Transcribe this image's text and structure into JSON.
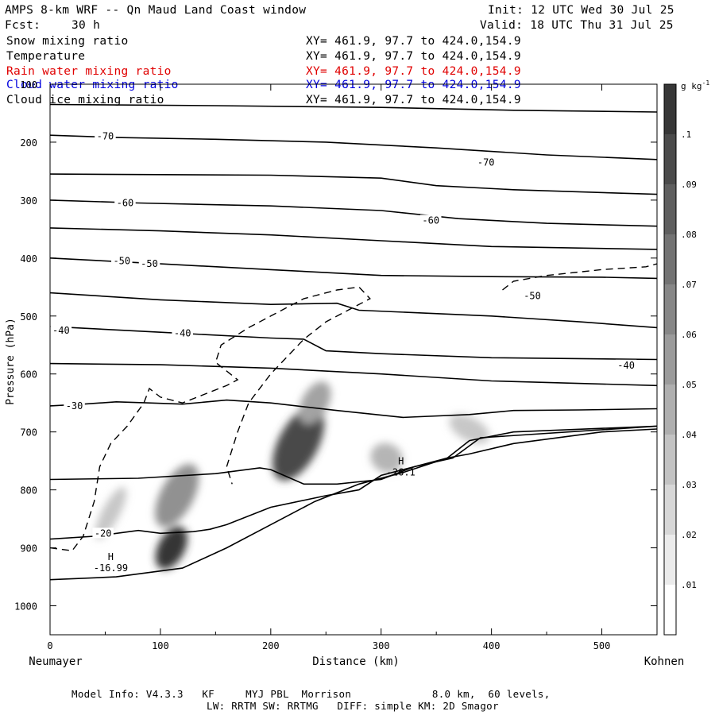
{
  "header": {
    "title": "AMPS 8-km WRF -- Qn Maud Land Coast window",
    "init": "Init: 12 UTC Wed 30 Jul 25",
    "fcst_label": "Fcst:",
    "fcst_value": "30 h",
    "valid": "Valid: 18 UTC Thu 31 Jul 25"
  },
  "fields": [
    {
      "name": "Snow mixing ratio",
      "xy": "XY= 461.9, 97.7 to 424.0,154.9",
      "color": "#000000"
    },
    {
      "name": "Temperature",
      "xy": "XY= 461.9, 97.7 to 424.0,154.9",
      "color": "#000000"
    },
    {
      "name": "Rain water mixing ratio",
      "xy": "XY= 461.9, 97.7 to 424.0,154.9",
      "color": "#e00000"
    },
    {
      "name": "Cloud water mixing ratio",
      "xy": "XY= 461.9, 97.7 to 424.0,154.9",
      "color": "#0000dd"
    },
    {
      "name": "Cloud ice mixing ratio",
      "xy": "XY= 461.9, 97.7 to 424.0,154.9",
      "color": "#000000"
    }
  ],
  "footer": {
    "line1": "Model Info: V4.3.3   KF     MYJ PBL  Morrison             8.0 km,  60 levels,",
    "line2": "LW: RRTM SW: RRTMG   DIFF: simple KM: 2D Smagor"
  },
  "chart_data": {
    "type": "heatmap",
    "xlabel": "Distance (km)",
    "ylabel": "Pressure (hPa)",
    "x_start_label": "Neumayer",
    "x_end_label": "Kohnen",
    "xlim": [
      0,
      550
    ],
    "ylim": [
      1050,
      100
    ],
    "x_ticks": [
      0,
      100,
      200,
      300,
      400,
      500
    ],
    "y_ticks": [
      100,
      200,
      300,
      400,
      500,
      600,
      700,
      800,
      900,
      1000
    ],
    "colorbar": {
      "unit": "g kg",
      "unit_exp": "-1",
      "levels": [
        ".01",
        ".02",
        ".03",
        ".04",
        ".05",
        ".06",
        ".07",
        ".08",
        ".09",
        ".1"
      ]
    },
    "temperature_contour_labels": [
      {
        "text": "-70",
        "x": 50,
        "p": 190
      },
      {
        "text": "-70",
        "x": 395,
        "p": 235
      },
      {
        "text": "-60",
        "x": 68,
        "p": 305
      },
      {
        "text": "-60",
        "x": 345,
        "p": 335
      },
      {
        "text": "-50",
        "x": 65,
        "p": 405
      },
      {
        "text": "-50",
        "x": 90,
        "p": 410
      },
      {
        "text": "-50",
        "x": 437,
        "p": 465
      },
      {
        "text": "-40",
        "x": 10,
        "p": 525
      },
      {
        "text": "-40",
        "x": 120,
        "p": 530
      },
      {
        "text": "-40",
        "x": 522,
        "p": 585
      },
      {
        "text": "-30",
        "x": 22,
        "p": 655
      },
      {
        "text": "-20",
        "x": 48,
        "p": 875
      }
    ],
    "extrema": [
      {
        "type": "H",
        "value": "-16.99",
        "x": 55,
        "p": 935
      },
      {
        "type": "H",
        "value": "-26.1",
        "x": 318,
        "p": 770
      }
    ],
    "temperature_contours": [
      {
        "level": -75,
        "points": [
          [
            0,
            135
          ],
          [
            150,
            137
          ],
          [
            300,
            140
          ],
          [
            420,
            145
          ],
          [
            550,
            148
          ]
        ]
      },
      {
        "level": -70,
        "points": [
          [
            0,
            188
          ],
          [
            60,
            192
          ],
          [
            150,
            195
          ],
          [
            250,
            200
          ],
          [
            350,
            210
          ],
          [
            450,
            222
          ],
          [
            550,
            230
          ]
        ]
      },
      {
        "level": -65,
        "points": [
          [
            0,
            255
          ],
          [
            200,
            257
          ],
          [
            300,
            262
          ],
          [
            350,
            275
          ],
          [
            420,
            282
          ],
          [
            550,
            290
          ]
        ]
      },
      {
        "level": -60,
        "points": [
          [
            0,
            300
          ],
          [
            80,
            305
          ],
          [
            200,
            310
          ],
          [
            300,
            318
          ],
          [
            370,
            332
          ],
          [
            450,
            340
          ],
          [
            550,
            345
          ]
        ]
      },
      {
        "level": -55,
        "points": [
          [
            0,
            348
          ],
          [
            100,
            353
          ],
          [
            200,
            360
          ],
          [
            300,
            370
          ],
          [
            400,
            380
          ],
          [
            550,
            385
          ]
        ]
      },
      {
        "level": -50,
        "points": [
          [
            0,
            400
          ],
          [
            100,
            410
          ],
          [
            200,
            420
          ],
          [
            300,
            430
          ],
          [
            400,
            432
          ],
          [
            500,
            433
          ],
          [
            550,
            435
          ]
        ]
      },
      {
        "level": -45,
        "points": [
          [
            0,
            460
          ],
          [
            100,
            472
          ],
          [
            200,
            480
          ],
          [
            260,
            478
          ],
          [
            280,
            490
          ],
          [
            400,
            500
          ],
          [
            480,
            510
          ],
          [
            550,
            520
          ]
        ]
      },
      {
        "level": -40,
        "points": [
          [
            0,
            518
          ],
          [
            100,
            528
          ],
          [
            200,
            538
          ],
          [
            230,
            540
          ],
          [
            250,
            560
          ],
          [
            300,
            565
          ],
          [
            400,
            572
          ],
          [
            550,
            575
          ]
        ]
      },
      {
        "level": -35,
        "points": [
          [
            0,
            582
          ],
          [
            100,
            584
          ],
          [
            200,
            590
          ],
          [
            300,
            600
          ],
          [
            400,
            612
          ],
          [
            550,
            620
          ]
        ]
      },
      {
        "level": -30,
        "points": [
          [
            0,
            655
          ],
          [
            30,
            652
          ],
          [
            60,
            648
          ],
          [
            90,
            650
          ],
          [
            120,
            652
          ],
          [
            160,
            645
          ],
          [
            200,
            650
          ],
          [
            260,
            663
          ],
          [
            320,
            675
          ],
          [
            380,
            670
          ],
          [
            420,
            663
          ],
          [
            480,
            662
          ],
          [
            550,
            660
          ]
        ]
      },
      {
        "level": -25,
        "points": [
          [
            0,
            782
          ],
          [
            80,
            780
          ],
          [
            150,
            772
          ],
          [
            190,
            762
          ],
          [
            200,
            765
          ],
          [
            230,
            790
          ],
          [
            260,
            790
          ],
          [
            300,
            782
          ],
          [
            330,
            760
          ],
          [
            360,
            745
          ],
          [
            380,
            738
          ],
          [
            420,
            720
          ],
          [
            500,
            700
          ],
          [
            550,
            695
          ]
        ]
      },
      {
        "level": -20,
        "points": [
          [
            0,
            885
          ],
          [
            40,
            880
          ],
          [
            80,
            870
          ],
          [
            100,
            875
          ],
          [
            130,
            872
          ],
          [
            145,
            868
          ],
          [
            160,
            860
          ],
          [
            200,
            830
          ],
          [
            250,
            810
          ],
          [
            280,
            800
          ],
          [
            300,
            775
          ],
          [
            330,
            760
          ],
          [
            365,
            745
          ],
          [
            390,
            710
          ],
          [
            550,
            690
          ]
        ]
      },
      {
        "level": -15,
        "points": [
          [
            0,
            955
          ],
          [
            60,
            950
          ],
          [
            120,
            935
          ],
          [
            160,
            900
          ],
          [
            200,
            860
          ],
          [
            240,
            820
          ],
          [
            280,
            790
          ],
          [
            320,
            770
          ],
          [
            360,
            745
          ],
          [
            380,
            715
          ],
          [
            420,
            700
          ],
          [
            550,
            690
          ]
        ]
      }
    ],
    "snow_contours": [
      {
        "level": 0.005,
        "points": [
          [
            0,
            900
          ],
          [
            20,
            905
          ],
          [
            30,
            880
          ],
          [
            40,
            820
          ],
          [
            45,
            760
          ],
          [
            55,
            720
          ],
          [
            70,
            690
          ],
          [
            85,
            650
          ],
          [
            90,
            625
          ],
          [
            100,
            640
          ],
          [
            120,
            650
          ],
          [
            160,
            620
          ],
          [
            170,
            610
          ],
          [
            150,
            580
          ],
          [
            155,
            550
          ],
          [
            180,
            520
          ],
          [
            200,
            500
          ],
          [
            230,
            470
          ],
          [
            260,
            455
          ],
          [
            280,
            450
          ],
          [
            290,
            470
          ],
          [
            270,
            490
          ],
          [
            250,
            510
          ],
          [
            230,
            540
          ],
          [
            210,
            580
          ],
          [
            200,
            600
          ],
          [
            180,
            650
          ],
          [
            170,
            700
          ],
          [
            160,
            760
          ],
          [
            165,
            790
          ]
        ]
      },
      {
        "level": 0.005,
        "points": [
          [
            410,
            455
          ],
          [
            420,
            440
          ],
          [
            450,
            430
          ],
          [
            500,
            420
          ],
          [
            540,
            415
          ],
          [
            550,
            410
          ]
        ]
      }
    ],
    "cloud_ice_blobs": [
      {
        "x": 110,
        "p": 900,
        "sx": 12,
        "sp": 40,
        "q": 0.1
      },
      {
        "x": 115,
        "p": 810,
        "sx": 15,
        "sp": 60,
        "q": 0.05
      },
      {
        "x": 55,
        "p": 840,
        "sx": 8,
        "sp": 50,
        "q": 0.02
      },
      {
        "x": 225,
        "p": 720,
        "sx": 18,
        "sp": 70,
        "q": 0.09
      },
      {
        "x": 240,
        "p": 650,
        "sx": 12,
        "sp": 40,
        "q": 0.04
      },
      {
        "x": 305,
        "p": 745,
        "sx": 15,
        "sp": 25,
        "q": 0.03
      },
      {
        "x": 380,
        "p": 695,
        "sx": 20,
        "sp": 20,
        "q": 0.02
      }
    ]
  }
}
